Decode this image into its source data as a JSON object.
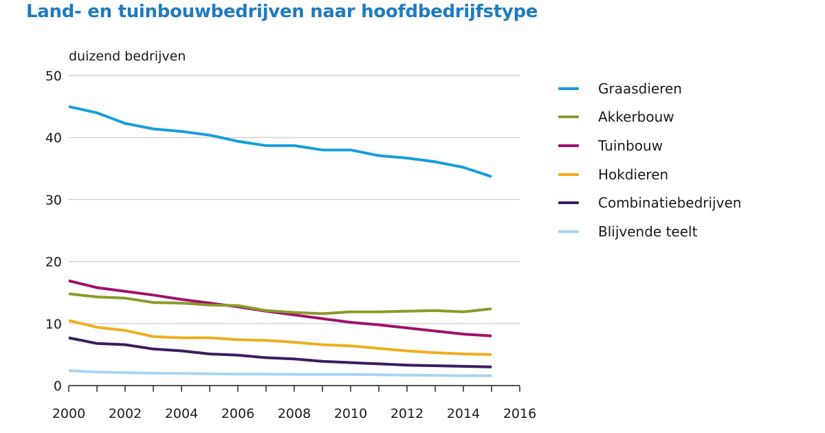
{
  "chart_data": {
    "type": "line",
    "title": "Land- en tuinbouwbedrijven naar hoofdbedrijfstype",
    "ylabel": "duizend bedrijven",
    "xlabel": "",
    "xlim": [
      2000,
      2016
    ],
    "ylim": [
      0,
      50
    ],
    "x_ticks": [
      "2000",
      "2002",
      "2004",
      "2006",
      "2008",
      "2010",
      "2012",
      "2014",
      "2016"
    ],
    "y_ticks": [
      "0",
      "10",
      "20",
      "30",
      "40",
      "50"
    ],
    "x_tick_values": [
      2000,
      2002,
      2004,
      2006,
      2008,
      2010,
      2012,
      2014,
      2016
    ],
    "y_tick_values": [
      0,
      10,
      20,
      30,
      40,
      50
    ],
    "grid": "horizontal",
    "legend_position": "right",
    "x": [
      2000,
      2001,
      2002,
      2003,
      2004,
      2005,
      2006,
      2007,
      2008,
      2009,
      2010,
      2011,
      2012,
      2013,
      2014,
      2015
    ],
    "series": [
      {
        "name": "Graasdieren",
        "color": "#159fdb",
        "values": [
          45.0,
          44.0,
          42.3,
          41.4,
          41.0,
          40.4,
          39.4,
          38.7,
          38.7,
          38.0,
          38.0,
          37.1,
          36.7,
          36.1,
          35.2,
          33.7
        ]
      },
      {
        "name": "Akkerbouw",
        "color": "#8a9a2b",
        "values": [
          14.8,
          14.3,
          14.1,
          13.4,
          13.3,
          13.0,
          12.9,
          12.1,
          11.8,
          11.6,
          11.9,
          11.9,
          12.0,
          12.1,
          11.9,
          12.4
        ]
      },
      {
        "name": "Tuinbouw",
        "color": "#a1106b",
        "values": [
          16.9,
          15.8,
          15.2,
          14.6,
          13.9,
          13.3,
          12.7,
          12.0,
          11.4,
          10.8,
          10.2,
          9.8,
          9.3,
          8.8,
          8.3,
          8.0
        ]
      },
      {
        "name": "Hokdieren",
        "color": "#f0ae1d",
        "values": [
          10.5,
          9.4,
          8.9,
          7.9,
          7.7,
          7.7,
          7.4,
          7.3,
          7.0,
          6.6,
          6.4,
          6.0,
          5.6,
          5.3,
          5.1,
          5.0
        ]
      },
      {
        "name": "Combinatiebedrijven",
        "color": "#3b1d5e",
        "values": [
          7.7,
          6.8,
          6.6,
          5.9,
          5.6,
          5.1,
          4.9,
          4.5,
          4.3,
          3.9,
          3.7,
          3.5,
          3.3,
          3.2,
          3.1,
          3.0
        ]
      },
      {
        "name": "Blijvende teelt",
        "color": "#a8d4f0",
        "values": [
          2.4,
          2.2,
          2.1,
          2.0,
          1.95,
          1.9,
          1.85,
          1.85,
          1.8,
          1.8,
          1.8,
          1.75,
          1.7,
          1.65,
          1.6,
          1.6
        ]
      }
    ]
  }
}
